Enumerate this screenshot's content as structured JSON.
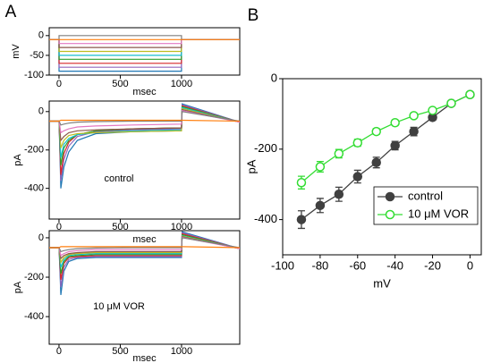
{
  "chart_data": [
    {
      "type": "line",
      "panel_label": "A",
      "ylabel": "mV",
      "xlabel": "msec",
      "xlim": [
        -80,
        1475
      ],
      "ylim": [
        -100,
        20
      ],
      "xticks": [
        0,
        500,
        1000
      ],
      "yticks": [
        0,
        -50,
        -100
      ],
      "x": [
        -80,
        0,
        0,
        1000,
        1000,
        1475
      ],
      "series": [
        {
          "color": "#1f77b4",
          "values": [
            -10,
            -10,
            -90,
            -90,
            -10,
            -10
          ]
        },
        {
          "color": "#9467bd",
          "values": [
            -10,
            -10,
            -80,
            -80,
            -10,
            -10
          ]
        },
        {
          "color": "#d62728",
          "values": [
            -10,
            -10,
            -70,
            -70,
            -10,
            -10
          ]
        },
        {
          "color": "#2ca02c",
          "values": [
            -10,
            -10,
            -60,
            -60,
            -10,
            -10
          ]
        },
        {
          "color": "#17becf",
          "values": [
            -10,
            -10,
            -50,
            -50,
            -10,
            -10
          ]
        },
        {
          "color": "#bcbd22",
          "values": [
            -10,
            -10,
            -40,
            -40,
            -10,
            -10
          ]
        },
        {
          "color": "#8c564b",
          "values": [
            -10,
            -10,
            -30,
            -30,
            -10,
            -10
          ]
        },
        {
          "color": "#e377c2",
          "values": [
            -10,
            -10,
            -20,
            -20,
            -10,
            -10
          ]
        },
        {
          "color": "#7f7f7f",
          "values": [
            -10,
            -10,
            0,
            0,
            -10,
            -10
          ]
        },
        {
          "color": "#ff7f0e",
          "values": [
            -10,
            -10,
            -10,
            -10,
            -10,
            -10
          ]
        }
      ]
    },
    {
      "type": "line",
      "ylabel": "pA",
      "xlabel": "msec",
      "annotation": "control",
      "xlim": [
        -80,
        1475
      ],
      "ylim": [
        -560,
        55
      ],
      "xticks": [
        0,
        500,
        1000
      ],
      "yticks": [
        0,
        -200,
        -400
      ],
      "x": [
        -80,
        0,
        15,
        40,
        80,
        150,
        300,
        600,
        1000,
        1005,
        1475
      ],
      "series": [
        {
          "color": "#1f77b4",
          "values": [
            -50,
            -50,
            -400,
            -290,
            -210,
            -150,
            -115,
            -105,
            -100,
            40,
            -55
          ]
        },
        {
          "color": "#9467bd",
          "values": [
            -50,
            -50,
            -360,
            -250,
            -180,
            -130,
            -105,
            -95,
            -90,
            35,
            -55
          ]
        },
        {
          "color": "#d62728",
          "values": [
            -50,
            -50,
            -330,
            -220,
            -160,
            -120,
            -100,
            -90,
            -85,
            30,
            -55
          ]
        },
        {
          "color": "#2ca02c",
          "values": [
            -50,
            -50,
            -280,
            -190,
            -150,
            -120,
            -100,
            -90,
            -85,
            25,
            -55
          ]
        },
        {
          "color": "#17becf",
          "values": [
            -50,
            -50,
            -240,
            -170,
            -140,
            -120,
            -110,
            -100,
            -95,
            20,
            -55
          ]
        },
        {
          "color": "#bcbd22",
          "values": [
            -50,
            -50,
            -190,
            -150,
            -125,
            -115,
            -110,
            -105,
            -100,
            15,
            -55
          ]
        },
        {
          "color": "#8c564b",
          "values": [
            -50,
            -50,
            -150,
            -130,
            -110,
            -100,
            -95,
            -90,
            -85,
            10,
            -55
          ]
        },
        {
          "color": "#e377c2",
          "values": [
            -50,
            -50,
            -110,
            -100,
            -90,
            -80,
            -75,
            -70,
            -65,
            5,
            -55
          ]
        },
        {
          "color": "#7f7f7f",
          "values": [
            -50,
            -50,
            -70,
            -65,
            -60,
            -55,
            -52,
            -50,
            -50,
            0,
            -50
          ]
        },
        {
          "color": "#ff7f0e",
          "values": [
            -50,
            -50,
            -45,
            -45,
            -45,
            -45,
            -45,
            -45,
            -45,
            -45,
            -50
          ]
        }
      ]
    },
    {
      "type": "line",
      "ylabel": "pA",
      "xlabel": "msec",
      "annotation": "10 μM VOR",
      "xlim": [
        -80,
        1475
      ],
      "ylim": [
        -540,
        36
      ],
      "xticks": [
        0,
        500,
        1000
      ],
      "yticks": [
        0,
        -200,
        -400
      ],
      "x": [
        -80,
        0,
        15,
        40,
        80,
        150,
        300,
        600,
        1000,
        1005,
        1475
      ],
      "series": [
        {
          "color": "#1f77b4",
          "values": [
            -50,
            -50,
            -290,
            -170,
            -120,
            -105,
            -100,
            -100,
            -100,
            30,
            -55
          ]
        },
        {
          "color": "#9467bd",
          "values": [
            -50,
            -50,
            -250,
            -150,
            -110,
            -100,
            -95,
            -95,
            -95,
            25,
            -55
          ]
        },
        {
          "color": "#d62728",
          "values": [
            -50,
            -50,
            -213,
            -130,
            -100,
            -95,
            -90,
            -90,
            -90,
            20,
            -55
          ]
        },
        {
          "color": "#2ca02c",
          "values": [
            -50,
            -50,
            -182,
            -120,
            -95,
            -90,
            -85,
            -85,
            -85,
            15,
            -55
          ]
        },
        {
          "color": "#17becf",
          "values": [
            -50,
            -50,
            -150,
            -110,
            -90,
            -85,
            -80,
            -80,
            -80,
            10,
            -55
          ]
        },
        {
          "color": "#bcbd22",
          "values": [
            -50,
            -50,
            -125,
            -100,
            -85,
            -80,
            -75,
            -75,
            -75,
            8,
            -55
          ]
        },
        {
          "color": "#8c564b",
          "values": [
            -50,
            -50,
            -105,
            -90,
            -80,
            -75,
            -70,
            -70,
            -70,
            5,
            -55
          ]
        },
        {
          "color": "#e377c2",
          "values": [
            -50,
            -50,
            -90,
            -80,
            -70,
            -65,
            -60,
            -60,
            -60,
            2,
            -55
          ]
        },
        {
          "color": "#7f7f7f",
          "values": [
            -50,
            -50,
            -70,
            -65,
            -60,
            -55,
            -52,
            -50,
            -50,
            0,
            -50
          ]
        },
        {
          "color": "#ff7f0e",
          "values": [
            -50,
            -50,
            -45,
            -45,
            -45,
            -45,
            -45,
            -45,
            -45,
            -45,
            -50
          ]
        }
      ]
    },
    {
      "type": "errorline",
      "panel_label": "B",
      "ylabel": "pA",
      "xlabel": "mV",
      "legend": "lower right",
      "xlim": [
        -100,
        6
      ],
      "ylim": [
        -500,
        0
      ],
      "xticks": [
        -100,
        -80,
        -60,
        -40,
        -20,
        0
      ],
      "yticks": [
        0,
        -200,
        -400
      ],
      "x": [
        -90,
        -80,
        -70,
        -60,
        -50,
        -40,
        -30,
        -20,
        -10,
        0
      ],
      "series": [
        {
          "name": "control",
          "color": "#404040",
          "filled": true,
          "values": [
            -400,
            -360,
            -328,
            -278,
            -238,
            -190,
            -150,
            -110,
            -70,
            -45
          ],
          "errors": [
            25,
            20,
            20,
            18,
            15,
            12,
            12,
            8,
            6,
            4
          ]
        },
        {
          "name": "10 μM VOR",
          "color": "#33dd33",
          "filled": false,
          "values": [
            -295,
            -250,
            -213,
            -182,
            -150,
            -125,
            -105,
            -90,
            -70,
            -45
          ],
          "errors": [
            18,
            15,
            12,
            10,
            8,
            7,
            5,
            5,
            5,
            4
          ]
        }
      ]
    }
  ]
}
